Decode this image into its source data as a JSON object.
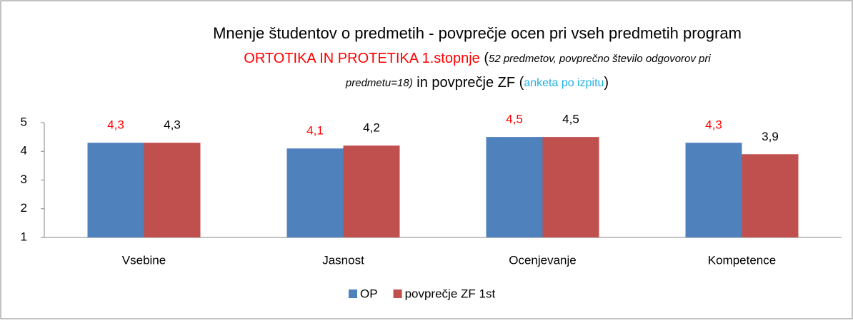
{
  "chart_data": {
    "type": "bar",
    "title_lines": [
      [
        "Mnenje študentov o predmetih - povprečje ocen pri vseh predmetih program"
      ],
      [
        "ORTOTIKA IN PROTETIKA 1.stopnje",
        " (",
        "52 predmetov, povprečno število odgovorov pri"
      ],
      [
        "predmetu=18)",
        " in povprečje ZF (",
        "anketa po izpitu",
        ")"
      ]
    ],
    "categories": [
      "Vsebine",
      "Jasnost",
      "Ocenjevanje",
      "Kompetence"
    ],
    "series": [
      {
        "name": "OP",
        "color": "#4f81bd",
        "label_color": "#ff0000",
        "values": [
          4.3,
          4.1,
          4.5,
          4.3
        ],
        "value_labels": [
          "4,3",
          "4,1",
          "4,5",
          "4,3"
        ]
      },
      {
        "name": "povprečje ZF 1st",
        "color": "#c0504d",
        "label_color": "#000000",
        "values": [
          4.3,
          4.2,
          4.5,
          3.9
        ],
        "value_labels": [
          "4,3",
          "4,2",
          "4,5",
          "3,9"
        ]
      }
    ],
    "ylim": [
      1,
      5
    ],
    "yticks": [
      1,
      2,
      3,
      4,
      5
    ],
    "grid": false,
    "legend": "bottom"
  }
}
